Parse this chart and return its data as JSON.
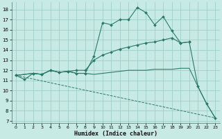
{
  "background_color": "#c8eae4",
  "grid_color": "#a0cec8",
  "line_color": "#2a7a6a",
  "xlabel": "Humidex (Indice chaleur)",
  "xlim": [
    -0.5,
    23.5
  ],
  "ylim": [
    6.8,
    18.7
  ],
  "yticks": [
    7,
    8,
    9,
    10,
    11,
    12,
    13,
    14,
    15,
    16,
    17,
    18
  ],
  "xticks": [
    0,
    1,
    2,
    3,
    4,
    5,
    6,
    7,
    8,
    9,
    10,
    11,
    12,
    13,
    14,
    15,
    16,
    17,
    18,
    19,
    20,
    21,
    22,
    23
  ],
  "lines": [
    {
      "x": [
        0,
        1,
        2,
        3,
        4,
        5,
        6,
        7,
        8,
        9,
        10,
        11,
        12,
        13,
        14,
        15,
        16,
        17,
        18,
        19,
        20,
        21,
        22,
        23
      ],
      "y": [
        11.5,
        11.1,
        11.7,
        11.6,
        12.0,
        11.8,
        11.9,
        11.7,
        11.7,
        13.4,
        16.7,
        16.5,
        17.0,
        17.0,
        18.2,
        17.7,
        16.5,
        17.3,
        15.9,
        14.7,
        14.8,
        10.4,
        8.7,
        7.3
      ],
      "marker": true,
      "dashed": false
    },
    {
      "x": [
        0,
        2,
        3,
        4,
        5,
        6,
        7,
        8,
        9,
        10,
        11,
        12,
        13,
        14,
        15,
        16,
        17,
        18,
        19,
        20
      ],
      "y": [
        11.5,
        11.7,
        11.6,
        12.0,
        11.8,
        11.9,
        12.0,
        12.0,
        13.0,
        13.5,
        13.8,
        14.1,
        14.3,
        14.5,
        14.7,
        14.8,
        15.0,
        15.2,
        14.7,
        14.8
      ],
      "marker": true,
      "dashed": false
    },
    {
      "x": [
        0,
        2,
        3,
        4,
        5,
        6,
        7,
        8,
        9,
        10,
        11,
        12,
        13,
        14,
        15,
        16,
        17,
        18,
        19,
        20,
        21,
        22,
        23
      ],
      "y": [
        11.5,
        11.7,
        11.6,
        12.0,
        11.8,
        11.9,
        11.7,
        11.7,
        11.6,
        11.7,
        11.8,
        11.9,
        12.0,
        12.0,
        12.0,
        12.1,
        12.1,
        12.1,
        12.2,
        12.2,
        10.4,
        8.7,
        7.3
      ],
      "marker": false,
      "dashed": false
    },
    {
      "x": [
        0,
        23
      ],
      "y": [
        11.5,
        7.3
      ],
      "marker": false,
      "dashed": true
    }
  ]
}
